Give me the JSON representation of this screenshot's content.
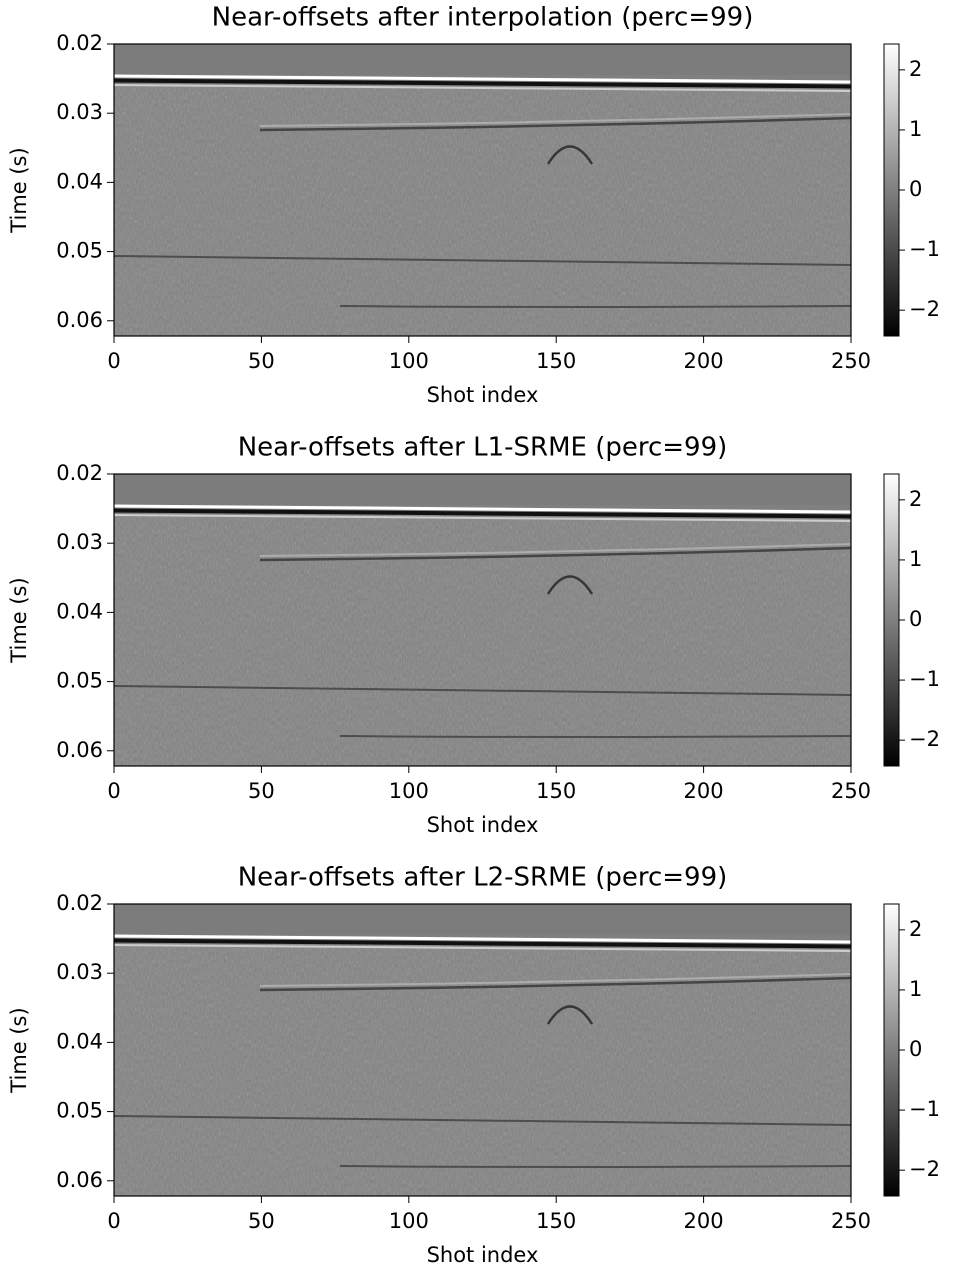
{
  "chart_data": [
    {
      "type": "image",
      "title": "Near-offsets after interpolation (perc=99)",
      "xlabel": "Shot index",
      "ylabel": "Time (s)",
      "xlim": [
        0,
        250
      ],
      "xticks": [
        0,
        50,
        100,
        150,
        200,
        250
      ],
      "ylim": [
        0.0622,
        0.02
      ],
      "yticks": [
        0.02,
        0.03,
        0.04,
        0.05,
        0.06
      ],
      "cmap": "gray",
      "clim": [
        -2.43,
        2.43
      ],
      "cticks": [
        {
          "value": -2,
          "label": "−2"
        },
        {
          "value": -1,
          "label": "−1"
        },
        0,
        1,
        2
      ]
    },
    {
      "type": "image",
      "title": "Near-offsets after L1-SRME (perc=99)",
      "xlabel": "Shot index",
      "ylabel": "Time (s)",
      "xlim": [
        0,
        250
      ],
      "xticks": [
        0,
        50,
        100,
        150,
        200,
        250
      ],
      "ylim": [
        0.0622,
        0.02
      ],
      "yticks": [
        0.02,
        0.03,
        0.04,
        0.05,
        0.06
      ],
      "cmap": "gray",
      "clim": [
        -2.43,
        2.43
      ],
      "cticks": [
        {
          "value": -2,
          "label": "−2"
        },
        {
          "value": -1,
          "label": "−1"
        },
        0,
        1,
        2
      ]
    },
    {
      "type": "image",
      "title": "Near-offsets after L2-SRME (perc=99)",
      "xlabel": "Shot index",
      "ylabel": "Time (s)",
      "xlim": [
        0,
        250
      ],
      "xticks": [
        0,
        50,
        100,
        150,
        200,
        250
      ],
      "ylim": [
        0.0622,
        0.02
      ],
      "yticks": [
        0.02,
        0.03,
        0.04,
        0.05,
        0.06
      ],
      "cmap": "gray",
      "clim": [
        -2.43,
        2.43
      ],
      "cticks": [
        {
          "value": -2,
          "label": "−2"
        },
        {
          "value": -1,
          "label": "−1"
        },
        0,
        1,
        2
      ]
    }
  ]
}
